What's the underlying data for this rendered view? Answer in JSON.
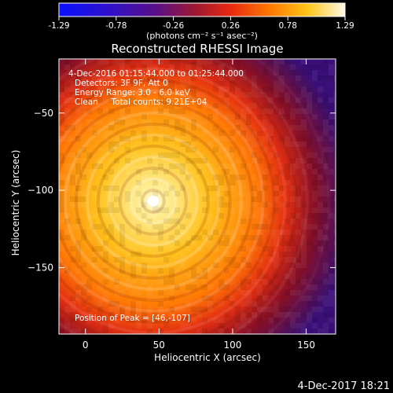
{
  "colorbar": {
    "ticks": [
      "-1.29",
      "-0.78",
      "-0.26",
      "0.26",
      "0.78",
      "1.29"
    ],
    "unit_label": "(photons cm⁻² s⁻¹ asec⁻²)"
  },
  "title": "Reconstructed RHESSI Image",
  "info_lines": [
    "4-Dec-2016 01:15:44.000 to 01:25:44.000",
    "Detectors: 3F 9F, Att 0",
    "Energy Range: 3.0 - 6.0 keV",
    "Clean     Total counts: 9.21E+04"
  ],
  "peak_text": "Position of Peak = [46,-107]",
  "footer_date": "4-Dec-2017 18:21",
  "chart_data": {
    "type": "heatmap",
    "title": "Reconstructed RHESSI Image",
    "xlabel": "Heliocentric X (arcsec)",
    "ylabel": "Heliocentric Y (arcsec)",
    "xlim": [
      -18,
      170
    ],
    "ylim": [
      -193,
      -15
    ],
    "xticks": [
      0,
      50,
      100,
      150
    ],
    "yticks": [
      -50,
      -100,
      -150
    ],
    "zlim": [
      -1.29,
      1.29
    ],
    "colormap": "red-temperature",
    "peak": [
      46,
      -107
    ],
    "peak_value": 1.29
  }
}
